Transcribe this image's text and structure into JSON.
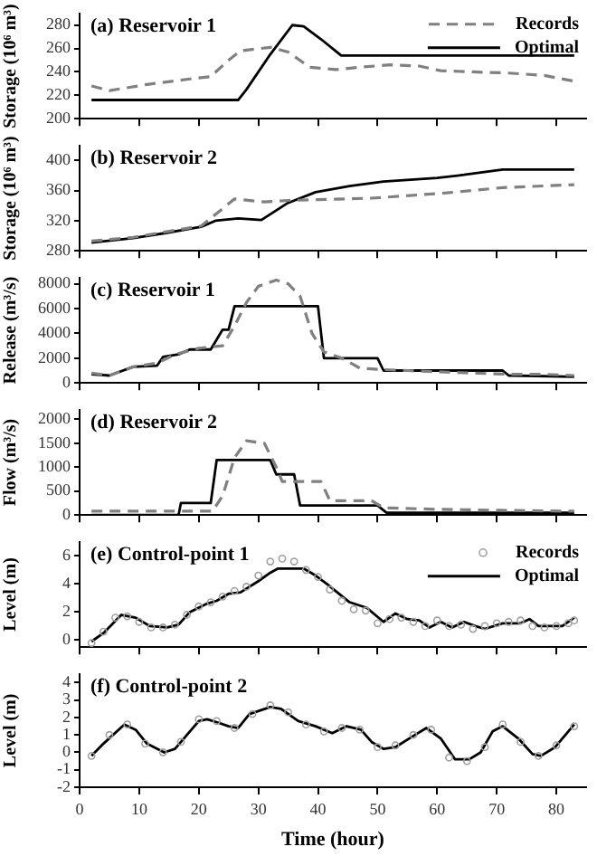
{
  "chart_data": [
    {
      "type": "line",
      "title": "(a) Reservoir 1",
      "ylabel": "Storage (10⁶ m³)",
      "xlim": [
        0,
        85
      ],
      "xticks": [
        0,
        10,
        20,
        30,
        40,
        50,
        60,
        70,
        80
      ],
      "ylim": [
        200,
        290
      ],
      "yticks": [
        200,
        220,
        240,
        260,
        280
      ],
      "tick_labels": "y",
      "legend": "top right",
      "series": [
        {
          "name": "Records",
          "color": "#808080",
          "line_style": "dashed",
          "x": [
            2,
            5,
            11,
            18.5,
            22,
            25,
            27,
            32,
            35,
            38.6,
            43,
            47,
            52,
            57,
            60.6,
            66,
            72,
            78,
            83
          ],
          "values": [
            228,
            224,
            229,
            234,
            236,
            250,
            258,
            261,
            257,
            244,
            242,
            244,
            246,
            245,
            241,
            240,
            239,
            237,
            232
          ]
        },
        {
          "name": "Optimal",
          "color": "#000000",
          "line_style": "solid",
          "x": [
            2,
            26.6,
            28,
            32,
            35.7,
            37.6,
            40.5,
            43.9,
            83
          ],
          "values": [
            216,
            216,
            225,
            255,
            280,
            279,
            268,
            254,
            254
          ]
        }
      ]
    },
    {
      "type": "line",
      "title": "(b) Reservoir 2",
      "ylabel": "Storage (10⁶ m³)",
      "xlim": [
        0,
        85
      ],
      "xticks": [
        0,
        10,
        20,
        30,
        40,
        50,
        60,
        70,
        80
      ],
      "ylim": [
        280,
        420
      ],
      "yticks": [
        280,
        320,
        360,
        400
      ],
      "tick_labels": "y",
      "series": [
        {
          "color": "#808080",
          "line_style": "dashed",
          "x": [
            2,
            9,
            15,
            20.4,
            26,
            31,
            35,
            40,
            49,
            61.6,
            71,
            83
          ],
          "values": [
            293,
            298,
            306,
            313,
            349,
            345,
            347,
            348,
            350,
            357,
            364,
            368
          ]
        },
        {
          "color": "#000000",
          "line_style": "solid",
          "x": [
            2,
            9,
            14.7,
            20.4,
            22.8,
            26.6,
            30.5,
            34.8,
            39.6,
            45.3,
            51,
            60,
            64.5,
            71,
            83
          ],
          "values": [
            291,
            297,
            304,
            312,
            320,
            323,
            321,
            343,
            358,
            366,
            372,
            377,
            381,
            388,
            388
          ]
        }
      ]
    },
    {
      "type": "line",
      "title": "(c) Reservoir 1",
      "ylabel": "Release (m³/s)",
      "xlim": [
        0,
        85
      ],
      "xticks": [
        0,
        10,
        20,
        30,
        40,
        50,
        60,
        70,
        80
      ],
      "ylim": [
        0,
        8500
      ],
      "yticks": [
        0,
        2000,
        4000,
        6000,
        8000
      ],
      "tick_labels": "y",
      "series": [
        {
          "color": "#808080",
          "line_style": "dashed",
          "x": [
            2,
            5,
            9,
            13,
            16,
            20,
            24,
            26,
            28,
            30,
            33,
            35,
            37,
            39,
            41,
            44,
            47,
            50,
            55,
            60,
            66,
            72,
            78,
            83
          ],
          "values": [
            800,
            600,
            1300,
            1600,
            2300,
            2800,
            3000,
            4600,
            6500,
            7800,
            8300,
            8000,
            7000,
            4000,
            2500,
            2000,
            1200,
            1100,
            1000,
            900,
            800,
            700,
            700,
            600
          ]
        },
        {
          "color": "#000000",
          "line_style": "solid",
          "x": [
            2,
            5,
            9,
            13,
            14,
            16.6,
            18.5,
            22,
            24,
            25,
            26,
            40,
            41,
            50,
            51,
            71,
            72,
            83
          ],
          "values": [
            700,
            600,
            1300,
            1400,
            2100,
            2300,
            2700,
            2700,
            4300,
            4300,
            6200,
            6200,
            2000,
            2000,
            1000,
            1000,
            600,
            500
          ]
        }
      ]
    },
    {
      "type": "line",
      "title": "(d) Reservoir 2",
      "ylabel": "Flow (m³/s)",
      "xlim": [
        0,
        85
      ],
      "xticks": [
        0,
        10,
        20,
        30,
        40,
        50,
        60,
        70,
        80
      ],
      "ylim": [
        0,
        2200
      ],
      "yticks": [
        0,
        500,
        1000,
        1500,
        2000
      ],
      "tick_labels": "y",
      "series": [
        {
          "color": "#808080",
          "line_style": "dashed",
          "x": [
            2,
            22.3,
            24,
            26,
            28,
            31,
            33,
            34,
            40.5,
            42,
            49,
            51,
            60,
            70,
            83
          ],
          "values": [
            80,
            80,
            400,
            1200,
            1550,
            1500,
            1000,
            700,
            700,
            300,
            300,
            150,
            120,
            100,
            80
          ]
        },
        {
          "color": "#000000",
          "line_style": "solid",
          "x": [
            2,
            16.6,
            17,
            22,
            23,
            32,
            33,
            36,
            37,
            50,
            51.5,
            83
          ],
          "values": [
            0,
            0,
            250,
            250,
            1150,
            1150,
            850,
            850,
            200,
            200,
            50,
            50
          ]
        }
      ]
    },
    {
      "type": "line",
      "title": "(e) Control-point 1",
      "ylabel": "Level (m)",
      "xlim": [
        0,
        85
      ],
      "xticks": [
        0,
        10,
        20,
        30,
        40,
        50,
        60,
        70,
        80
      ],
      "ylim": [
        -0.5,
        7
      ],
      "yticks": [
        0,
        2,
        4,
        6
      ],
      "tick_labels": "y",
      "legend": "top right",
      "series": [
        {
          "name": "Records",
          "type": "scatter",
          "marker": "circle",
          "color": "#a0a0a0",
          "x": [
            2,
            4,
            6,
            8,
            10,
            12,
            14,
            16,
            18,
            20,
            22,
            24,
            26,
            28,
            30,
            32,
            34,
            36,
            38,
            40,
            42,
            44,
            46,
            48,
            50,
            52,
            54,
            56,
            58,
            60,
            62,
            64,
            66,
            68,
            70,
            72,
            74,
            76,
            78,
            80,
            82,
            83
          ],
          "values": [
            -0.2,
            0.6,
            1.6,
            1.7,
            1.3,
            0.9,
            0.9,
            1.1,
            1.8,
            2.4,
            2.7,
            3.1,
            3.5,
            3.8,
            4.6,
            5.6,
            5.8,
            5.6,
            5.0,
            4.5,
            3.6,
            2.8,
            2.2,
            2.1,
            1.2,
            1.5,
            1.6,
            1.3,
            1.0,
            1.4,
            1.0,
            1.1,
            0.8,
            1.0,
            1.2,
            1.3,
            1.4,
            1.0,
            0.9,
            1.0,
            1.2,
            1.4
          ]
        },
        {
          "name": "Optimal",
          "color": "#000000",
          "line_style": "solid",
          "x": [
            2,
            4,
            7,
            9.4,
            11.8,
            14.7,
            16.6,
            18.5,
            21.4,
            23,
            25,
            27,
            30,
            32,
            33.3,
            37.6,
            39.6,
            41.5,
            45.3,
            48.2,
            51,
            53,
            55,
            57,
            58.7,
            60.6,
            62.5,
            64.5,
            66.4,
            68,
            71,
            74,
            75.5,
            77,
            81,
            83
          ],
          "values": [
            -0.1,
            0.5,
            1.8,
            1.6,
            1.0,
            0.9,
            1.1,
            2.0,
            2.6,
            2.8,
            3.3,
            3.4,
            4.2,
            4.8,
            5.1,
            5.1,
            4.6,
            4.0,
            2.7,
            2.3,
            1.3,
            1.9,
            1.5,
            1.4,
            0.9,
            1.3,
            0.9,
            1.3,
            1.0,
            0.8,
            1.2,
            1.2,
            1.5,
            1.0,
            1.0,
            1.6
          ]
        }
      ]
    },
    {
      "type": "line",
      "title": "(f) Control-point 2",
      "ylabel": "Level (m)",
      "xlabel": "Time (hour)",
      "xlim": [
        0,
        85
      ],
      "xticks": [
        0,
        10,
        20,
        30,
        40,
        50,
        60,
        70,
        80
      ],
      "ylim": [
        -2,
        4.5
      ],
      "yticks": [
        -2,
        -1,
        0,
        1,
        2,
        3,
        4
      ],
      "series": [
        {
          "type": "scatter",
          "marker": "circle",
          "color": "#a0a0a0",
          "x": [
            2,
            5,
            8,
            11,
            14,
            17,
            20,
            23,
            26,
            29,
            32,
            35,
            38,
            41,
            44,
            47,
            50,
            53,
            56,
            59,
            62,
            65,
            68,
            71,
            74,
            77,
            80,
            83
          ],
          "values": [
            -0.2,
            1.0,
            1.6,
            0.5,
            0.0,
            0.6,
            1.9,
            1.8,
            1.4,
            2.2,
            2.7,
            2.3,
            1.6,
            1.2,
            1.4,
            1.3,
            0.3,
            0.4,
            1.0,
            1.3,
            -0.3,
            -0.5,
            0.3,
            1.6,
            0.6,
            -0.2,
            0.4,
            1.5
          ]
        },
        {
          "color": "#000000",
          "line_style": "solid",
          "x": [
            2,
            4,
            7.5,
            9.4,
            11.3,
            14.2,
            16,
            17.5,
            20,
            21.4,
            23.3,
            25,
            26.6,
            28.5,
            32,
            33.8,
            36.7,
            39.6,
            42.4,
            44.8,
            47.2,
            49,
            51,
            53,
            55.8,
            58.2,
            60.6,
            63,
            65.4,
            67.3,
            69.3,
            71,
            73.6,
            76,
            77.4,
            79.8,
            83
          ],
          "values": [
            -0.2,
            0.5,
            1.6,
            1.3,
            0.5,
            0.0,
            0.2,
            0.8,
            1.8,
            1.9,
            1.7,
            1.5,
            1.4,
            2.2,
            2.6,
            2.5,
            1.8,
            1.5,
            1.1,
            1.5,
            1.3,
            0.6,
            0.2,
            0.3,
            0.9,
            1.4,
            0.8,
            -0.4,
            -0.4,
            0.0,
            1.2,
            1.5,
            0.8,
            -0.1,
            -0.2,
            0.3,
            1.6
          ]
        }
      ]
    }
  ]
}
